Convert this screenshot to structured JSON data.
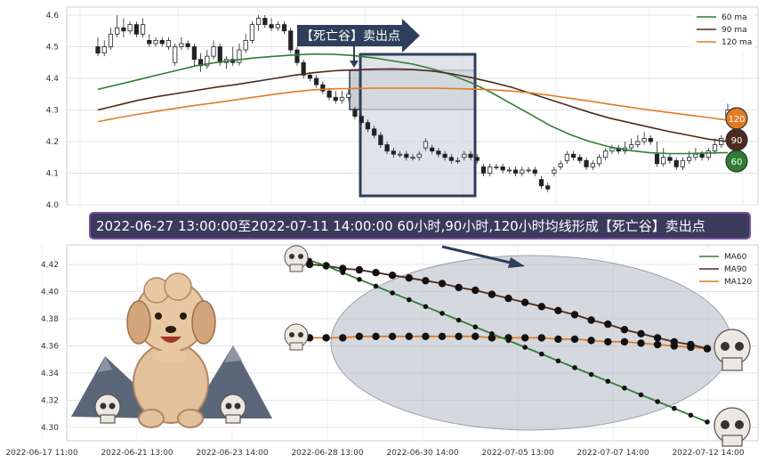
{
  "banner": "2022-06-27 13:00:00至2022-07-11 14:00:00 60小时,90小时,120小时均线形成【死亡谷】卖出点",
  "arrow_label": "【死亡谷】卖出点",
  "colors": {
    "ma60": "#2e7d32",
    "ma90": "#4e2a1e",
    "ma120": "#e07b24",
    "up": "#ffffff",
    "down": "#222222",
    "zone": "#2d3f5a"
  },
  "badges": [
    {
      "text": "120",
      "color": "#e07b24"
    },
    {
      "text": "90",
      "color": "#4e2a1e"
    },
    {
      "text": "60",
      "color": "#2e7d32"
    }
  ],
  "chart_data": [
    {
      "type": "candlestick",
      "ylim": [
        4.0,
        4.62
      ],
      "ytick_labels": [
        "4.0",
        "4.1",
        "4.2",
        "4.3",
        "4.4",
        "4.5",
        "4.6"
      ],
      "legend": [
        "60 ma",
        "90 ma",
        "120 ma"
      ],
      "legend_position": "top-right",
      "grid": true,
      "series": [
        {
          "name": "60 ma",
          "values": [
            4.365,
            4.38,
            4.395,
            4.41,
            4.425,
            4.44,
            4.45,
            4.458,
            4.465,
            4.47,
            4.474,
            4.477,
            4.476,
            4.472,
            4.465,
            4.455,
            4.445,
            4.43,
            4.41,
            4.385,
            4.355,
            4.32,
            4.285,
            4.25,
            4.222,
            4.2,
            4.183,
            4.172,
            4.165,
            4.162,
            4.162,
            4.164,
            4.165
          ]
        },
        {
          "name": "90 ma",
          "values": [
            4.3,
            4.315,
            4.33,
            4.342,
            4.352,
            4.362,
            4.372,
            4.38,
            4.39,
            4.4,
            4.41,
            4.418,
            4.424,
            4.427,
            4.429,
            4.43,
            4.428,
            4.423,
            4.414,
            4.402,
            4.388,
            4.372,
            4.352,
            4.332,
            4.312,
            4.292,
            4.274,
            4.26,
            4.246,
            4.232,
            4.22,
            4.208,
            4.2
          ]
        },
        {
          "name": "120 ma",
          "values": [
            4.263,
            4.275,
            4.286,
            4.296,
            4.306,
            4.315,
            4.323,
            4.332,
            4.341,
            4.35,
            4.358,
            4.364,
            4.367,
            4.368,
            4.369,
            4.369,
            4.369,
            4.369,
            4.368,
            4.366,
            4.364,
            4.36,
            4.354,
            4.346,
            4.337,
            4.328,
            4.318,
            4.309,
            4.3,
            4.292,
            4.284,
            4.276,
            4.268
          ]
        }
      ],
      "candles": [
        [
          4.5,
          4.48,
          4.53,
          4.47
        ],
        [
          4.48,
          4.5,
          4.52,
          4.47
        ],
        [
          4.5,
          4.54,
          4.56,
          4.49
        ],
        [
          4.54,
          4.56,
          4.6,
          4.53
        ],
        [
          4.56,
          4.55,
          4.59,
          4.53
        ],
        [
          4.55,
          4.57,
          4.58,
          4.54
        ],
        [
          4.57,
          4.54,
          4.58,
          4.53
        ],
        [
          4.54,
          4.57,
          4.59,
          4.53
        ],
        [
          4.52,
          4.51,
          4.54,
          4.5
        ],
        [
          4.51,
          4.52,
          4.53,
          4.5
        ],
        [
          4.52,
          4.51,
          4.53,
          4.5
        ],
        [
          4.5,
          4.52,
          4.53,
          4.49
        ],
        [
          4.45,
          4.5,
          4.51,
          4.44
        ],
        [
          4.5,
          4.51,
          4.53,
          4.49
        ],
        [
          4.51,
          4.5,
          4.52,
          4.49
        ],
        [
          4.5,
          4.46,
          4.51,
          4.44
        ],
        [
          4.46,
          4.44,
          4.48,
          4.42
        ],
        [
          4.44,
          4.47,
          4.49,
          4.43
        ],
        [
          4.47,
          4.5,
          4.52,
          4.46
        ],
        [
          4.5,
          4.45,
          4.51,
          4.44
        ],
        [
          4.45,
          4.46,
          4.47,
          4.43
        ],
        [
          4.46,
          4.45,
          4.5,
          4.44
        ],
        [
          4.45,
          4.49,
          4.51,
          4.44
        ],
        [
          4.49,
          4.52,
          4.54,
          4.48
        ],
        [
          4.52,
          4.57,
          4.58,
          4.51
        ],
        [
          4.57,
          4.59,
          4.6,
          4.55
        ],
        [
          4.59,
          4.57,
          4.6,
          4.56
        ],
        [
          4.57,
          4.56,
          4.59,
          4.55
        ],
        [
          4.56,
          4.57,
          4.58,
          4.55
        ],
        [
          4.57,
          4.55,
          4.58,
          4.54
        ],
        [
          4.55,
          4.49,
          4.56,
          4.48
        ],
        [
          4.49,
          4.45,
          4.5,
          4.44
        ],
        [
          4.45,
          4.41,
          4.46,
          4.4
        ],
        [
          4.41,
          4.4,
          4.42,
          4.39
        ],
        [
          4.4,
          4.38,
          4.41,
          4.37
        ],
        [
          4.38,
          4.36,
          4.39,
          4.35
        ],
        [
          4.36,
          4.34,
          4.37,
          4.33
        ],
        [
          4.34,
          4.33,
          4.36,
          4.32
        ],
        [
          4.33,
          4.34,
          4.36,
          4.32
        ],
        [
          4.34,
          4.35,
          4.37,
          4.33
        ],
        [
          4.3,
          4.28,
          4.31,
          4.27
        ],
        [
          4.28,
          4.26,
          4.29,
          4.25
        ],
        [
          4.26,
          4.24,
          4.27,
          4.23
        ],
        [
          4.24,
          4.22,
          4.25,
          4.21
        ],
        [
          4.22,
          4.19,
          4.23,
          4.18
        ],
        [
          4.19,
          4.17,
          4.2,
          4.16
        ],
        [
          4.17,
          4.16,
          4.18,
          4.15
        ],
        [
          4.16,
          4.16,
          4.17,
          4.15
        ],
        [
          4.16,
          4.15,
          4.17,
          4.14
        ],
        [
          4.15,
          4.15,
          4.16,
          4.14
        ],
        [
          4.15,
          4.16,
          4.17,
          4.14
        ],
        [
          4.18,
          4.2,
          4.21,
          4.17
        ],
        [
          4.18,
          4.17,
          4.19,
          4.16
        ],
        [
          4.17,
          4.16,
          4.18,
          4.15
        ],
        [
          4.16,
          4.15,
          4.17,
          4.14
        ],
        [
          4.15,
          4.14,
          4.16,
          4.13
        ],
        [
          4.14,
          4.14,
          4.15,
          4.13
        ],
        [
          4.15,
          4.16,
          4.17,
          4.14
        ],
        [
          4.16,
          4.15,
          4.17,
          4.14
        ],
        [
          4.15,
          4.14,
          4.16,
          4.13
        ],
        [
          4.12,
          4.1,
          4.13,
          4.09
        ],
        [
          4.1,
          4.12,
          4.13,
          4.09
        ],
        [
          4.12,
          4.12,
          4.13,
          4.11
        ],
        [
          4.12,
          4.11,
          4.13,
          4.1
        ],
        [
          4.11,
          4.11,
          4.12,
          4.1
        ],
        [
          4.11,
          4.1,
          4.12,
          4.09
        ],
        [
          4.1,
          4.11,
          4.12,
          4.09
        ],
        [
          4.11,
          4.11,
          4.12,
          4.1
        ],
        [
          4.11,
          4.1,
          4.12,
          4.09
        ],
        [
          4.08,
          4.06,
          4.09,
          4.05
        ],
        [
          4.06,
          4.05,
          4.07,
          4.04
        ],
        [
          4.1,
          4.11,
          4.12,
          4.09
        ],
        [
          4.12,
          4.13,
          4.14,
          4.11
        ],
        [
          4.14,
          4.16,
          4.17,
          4.13
        ],
        [
          4.16,
          4.15,
          4.17,
          4.14
        ],
        [
          4.15,
          4.14,
          4.16,
          4.13
        ],
        [
          4.14,
          4.12,
          4.15,
          4.11
        ],
        [
          4.12,
          4.13,
          4.14,
          4.11
        ],
        [
          4.13,
          4.15,
          4.16,
          4.12
        ],
        [
          4.15,
          4.17,
          4.18,
          4.14
        ],
        [
          4.17,
          4.18,
          4.19,
          4.16
        ],
        [
          4.18,
          4.17,
          4.19,
          4.16
        ],
        [
          4.17,
          4.18,
          4.2,
          4.16
        ],
        [
          4.18,
          4.19,
          4.21,
          4.17
        ],
        [
          4.19,
          4.2,
          4.22,
          4.18
        ],
        [
          4.2,
          4.21,
          4.23,
          4.19
        ],
        [
          4.21,
          4.2,
          4.22,
          4.19
        ],
        [
          4.16,
          4.13,
          4.2,
          4.12
        ],
        [
          4.13,
          4.15,
          4.18,
          4.12
        ],
        [
          4.15,
          4.14,
          4.16,
          4.13
        ],
        [
          4.14,
          4.12,
          4.15,
          4.11
        ],
        [
          4.12,
          4.14,
          4.15,
          4.11
        ],
        [
          4.14,
          4.15,
          4.17,
          4.13
        ],
        [
          4.15,
          4.16,
          4.18,
          4.14
        ],
        [
          4.16,
          4.15,
          4.17,
          4.14
        ],
        [
          4.15,
          4.17,
          4.18,
          4.14
        ],
        [
          4.17,
          4.19,
          4.21,
          4.16
        ],
        [
          4.19,
          4.21,
          4.22,
          4.18
        ],
        [
          4.28,
          4.3,
          4.32,
          4.27
        ]
      ]
    },
    {
      "type": "line",
      "ylim": [
        4.295,
        4.43
      ],
      "ytick_labels": [
        "4.30",
        "4.32",
        "4.34",
        "4.36",
        "4.38",
        "4.40",
        "4.42"
      ],
      "xtick_labels": [
        "2022-06-17 11:00",
        "2022-06-21 13:00",
        "2022-06-23 14:00",
        "2022-06-28 13:00",
        "2022-06-30 14:00",
        "2022-07-05 13:00",
        "2022-07-07 14:00",
        "2022-07-12 14:00"
      ],
      "legend": [
        "MA60",
        "MA90",
        "MA120"
      ],
      "legend_position": "top-right",
      "grid": true,
      "series": [
        {
          "name": "MA60",
          "values": [
            4.423,
            4.419,
            4.414,
            4.409,
            4.404,
            4.399,
            4.394,
            4.389,
            4.384,
            4.379,
            4.374,
            4.369,
            4.364,
            4.359,
            4.354,
            4.349,
            4.344,
            4.339,
            4.334,
            4.329,
            4.324,
            4.319,
            4.314,
            4.309,
            4.304
          ]
        },
        {
          "name": "MA90",
          "values": [
            4.42,
            4.419,
            4.417,
            4.416,
            4.414,
            4.412,
            4.41,
            4.408,
            4.406,
            4.403,
            4.401,
            4.398,
            4.395,
            4.392,
            4.389,
            4.386,
            4.383,
            4.379,
            4.376,
            4.372,
            4.369,
            4.366,
            4.363,
            4.361,
            4.358
          ]
        },
        {
          "name": "MA120",
          "values": [
            4.366,
            4.366,
            4.366,
            4.367,
            4.367,
            4.367,
            4.367,
            4.367,
            4.367,
            4.367,
            4.367,
            4.366,
            4.366,
            4.366,
            4.366,
            4.365,
            4.365,
            4.364,
            4.363,
            4.363,
            4.362,
            4.361,
            4.36,
            4.359,
            4.358
          ]
        }
      ]
    }
  ]
}
